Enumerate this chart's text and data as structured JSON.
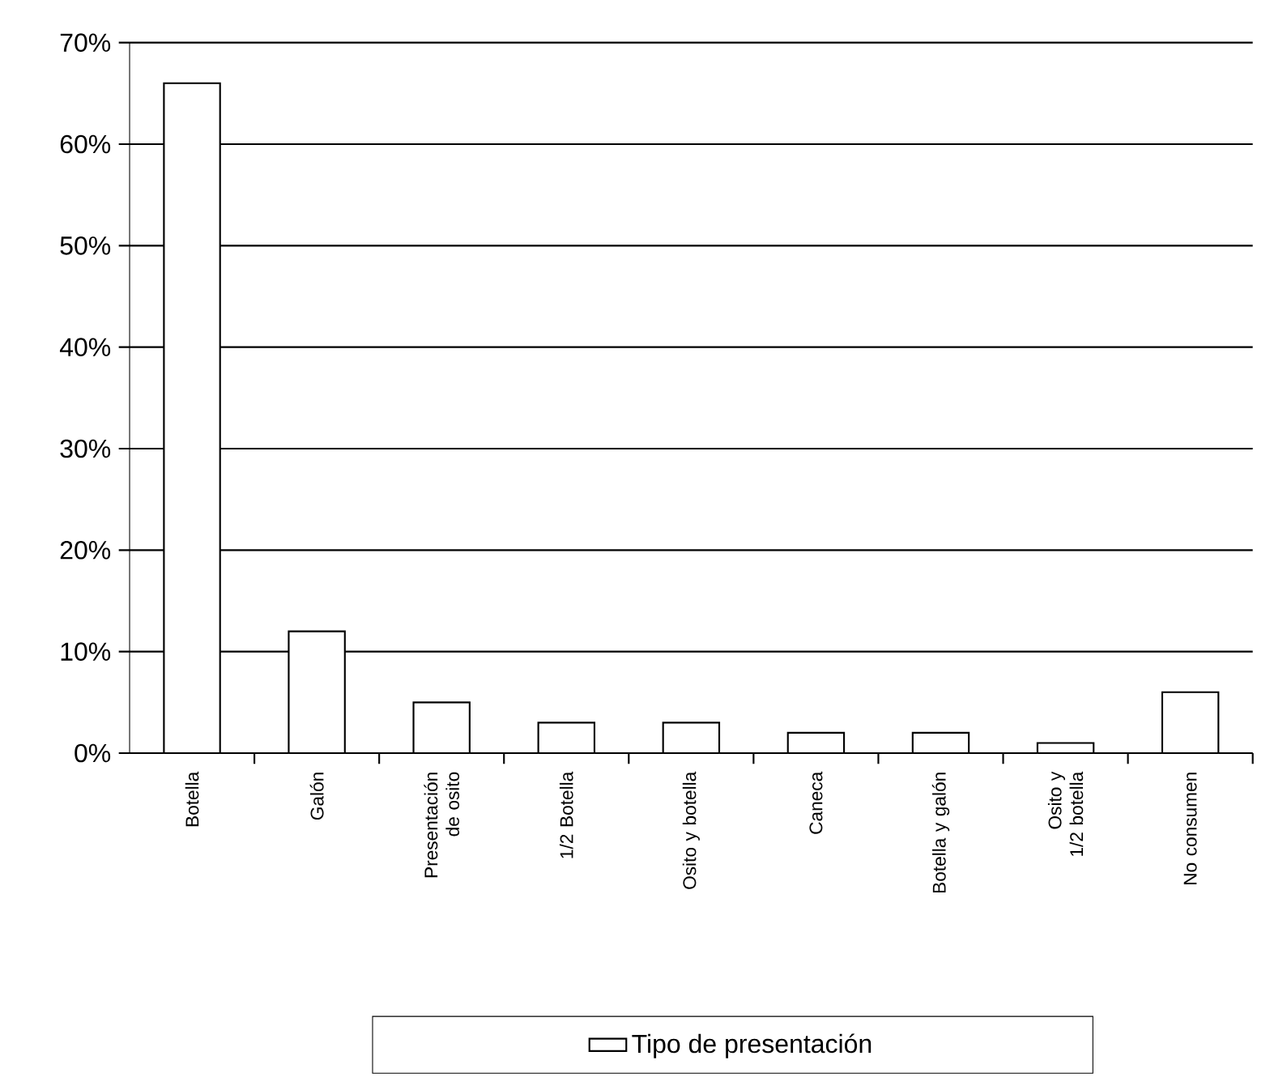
{
  "chart_data": {
    "type": "bar",
    "categories": [
      "Botella",
      "Galón",
      "Presentación de osito",
      "1/2 Botella",
      "Osito y botella",
      "Caneca",
      "Botella y galón",
      "Osito y 1/2 botella",
      "No consumen"
    ],
    "series": [
      {
        "name": "Tipo de presentación",
        "color": "#ffffff",
        "values": [
          66,
          12,
          5,
          3,
          3,
          2,
          2,
          1,
          6
        ]
      }
    ],
    "ylim": [
      0,
      70
    ],
    "yticks": [
      {
        "value": 0,
        "label": "0%"
      },
      {
        "value": 10,
        "label": "10%"
      },
      {
        "value": 20,
        "label": "20%"
      },
      {
        "value": 30,
        "label": "30%"
      },
      {
        "value": 40,
        "label": "40%"
      },
      {
        "value": 50,
        "label": "50%"
      },
      {
        "value": 60,
        "label": "60%"
      },
      {
        "value": 70,
        "label": "70%"
      }
    ],
    "grid": "y",
    "legend": "bottom"
  }
}
